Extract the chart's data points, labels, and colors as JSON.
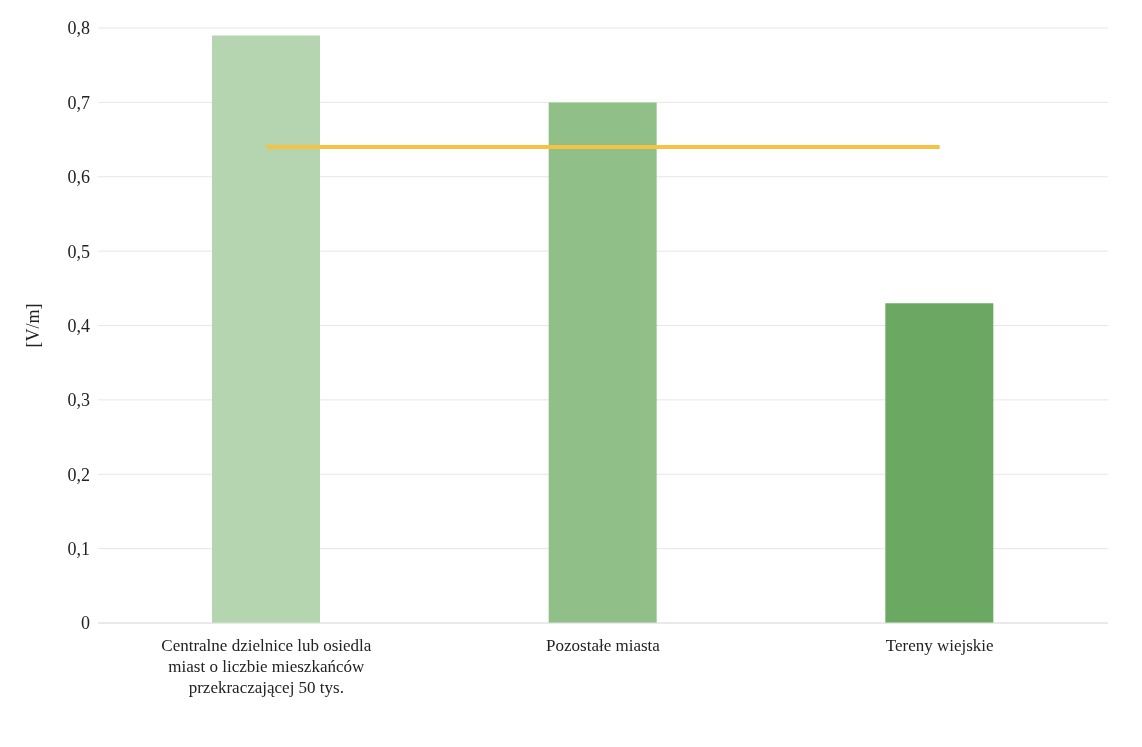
{
  "chart_data": {
    "type": "bar",
    "ylabel": "[V/m]",
    "categories": [
      "Centralne dzielnice lub osiedla miast o liczbie mieszkańców przekraczającej 50 tys.",
      "Pozostałe miasta",
      "Tereny wiejskie"
    ],
    "series": [
      {
        "colors": [
          "#b4d5b0",
          "#90c088",
          "#6ba862"
        ],
        "values": [
          0.79,
          0.7,
          0.43
        ]
      },
      {
        "type": "line",
        "color": "#f7c244",
        "values": [
          0.64,
          0.64,
          0.64
        ]
      }
    ],
    "ylim": [
      0,
      0.8
    ],
    "yticks": [
      {
        "value": 0,
        "label": "0"
      },
      {
        "value": 0.1,
        "label": "0,1"
      },
      {
        "value": 0.2,
        "label": "0,2"
      },
      {
        "value": 0.3,
        "label": "0,3"
      },
      {
        "value": 0.4,
        "label": "0,4"
      },
      {
        "value": 0.5,
        "label": "0,5"
      },
      {
        "value": 0.6,
        "label": "0,6"
      },
      {
        "value": 0.7,
        "label": "0,7"
      },
      {
        "value": 0.8,
        "label": "0,8"
      }
    ],
    "grid": "y",
    "legend": false,
    "marker": "none"
  }
}
